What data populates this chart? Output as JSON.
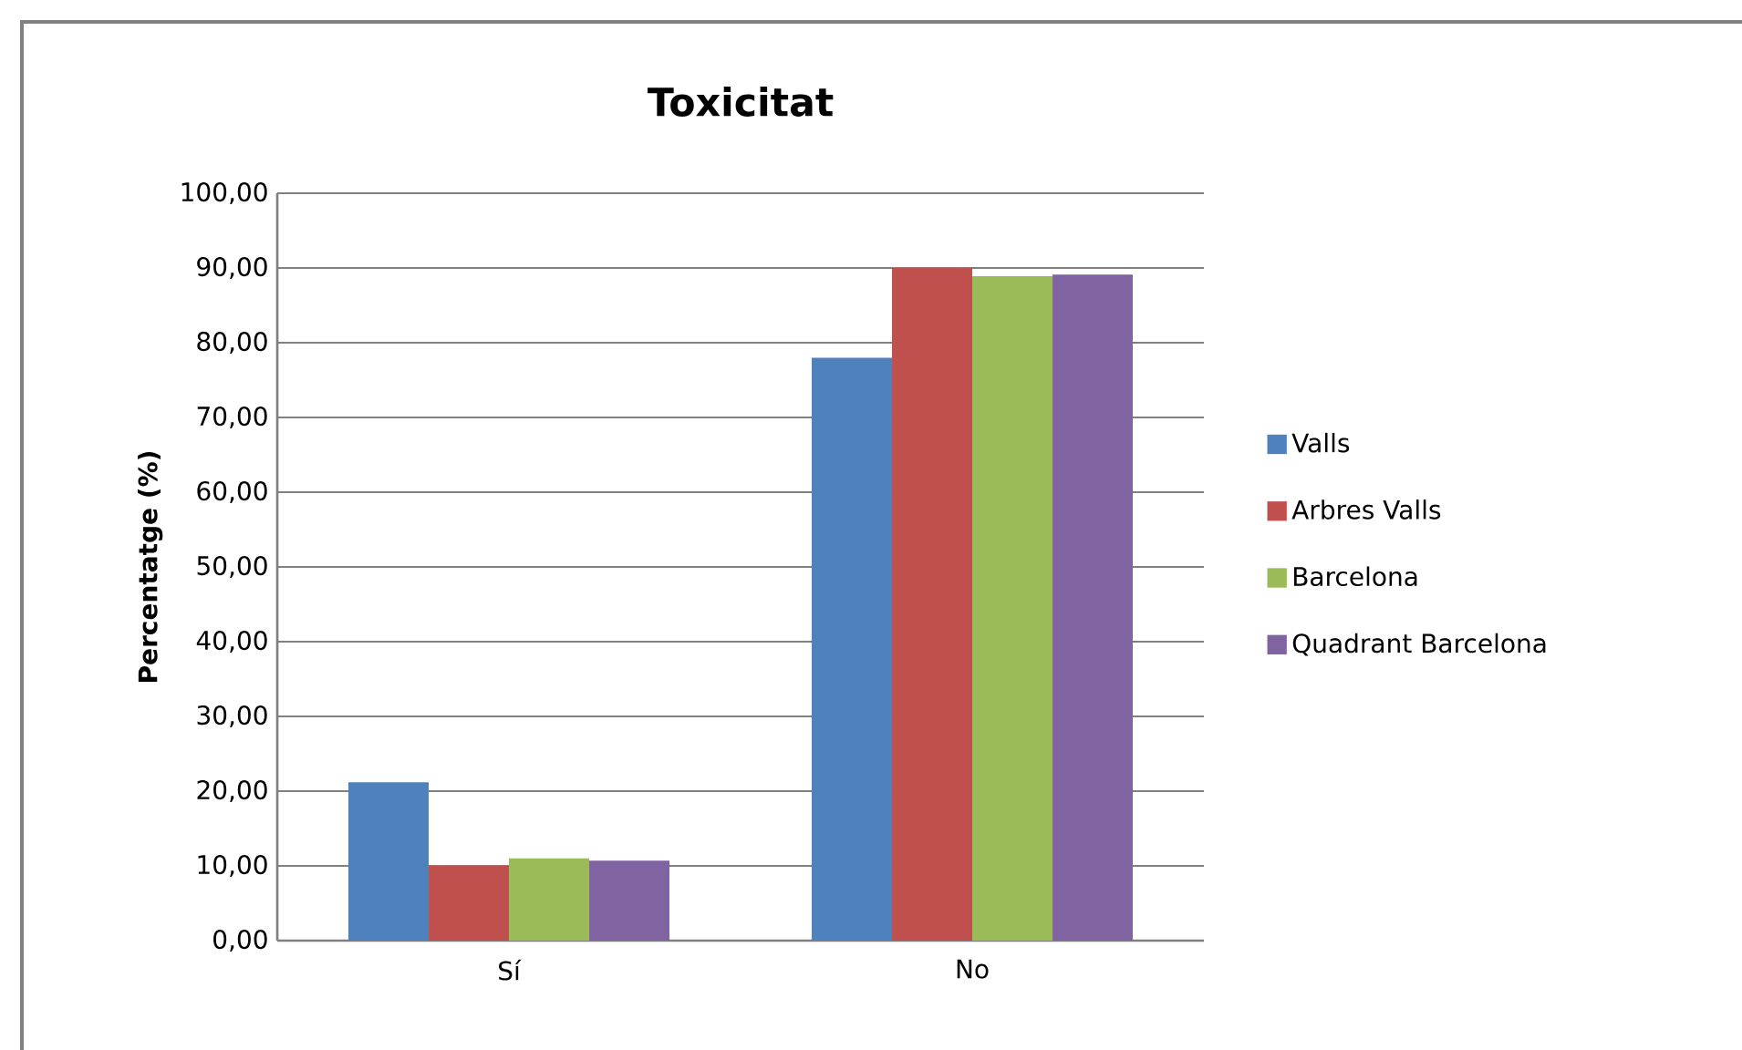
{
  "chart_data": {
    "type": "bar",
    "title": "Toxicitat",
    "ylabel": "Percentatge (%)",
    "categories": [
      "Sí",
      "No"
    ],
    "series": [
      {
        "name": "Valls",
        "color": "#4f81bd",
        "values": [
          21.2,
          78.0
        ]
      },
      {
        "name": "Arbres Valls",
        "color": "#c0504d",
        "values": [
          10.0,
          90.0
        ]
      },
      {
        "name": "Barcelona",
        "color": "#9bbb59",
        "values": [
          11.0,
          88.9
        ]
      },
      {
        "name": "Quadrant Barcelona",
        "color": "#8064a2",
        "values": [
          10.7,
          89.1
        ]
      }
    ],
    "ylim": [
      0,
      100
    ],
    "yticks": [
      {
        "value": 0,
        "label": "0,00"
      },
      {
        "value": 10,
        "label": "10,00"
      },
      {
        "value": 20,
        "label": "20,00"
      },
      {
        "value": 30,
        "label": "30,00"
      },
      {
        "value": 40,
        "label": "40,00"
      },
      {
        "value": 50,
        "label": "50,00"
      },
      {
        "value": 60,
        "label": "60,00"
      },
      {
        "value": 70,
        "label": "70,00"
      },
      {
        "value": 80,
        "label": "80,00"
      },
      {
        "value": 90,
        "label": "90,00"
      },
      {
        "value": 100,
        "label": "100,00"
      }
    ],
    "grid": "y",
    "legend": "right"
  }
}
